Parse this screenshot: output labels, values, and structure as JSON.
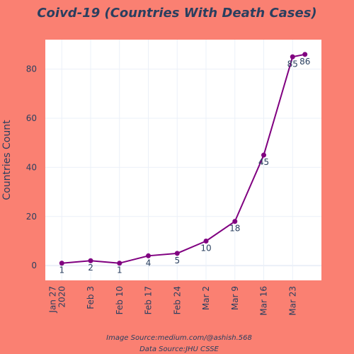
{
  "chart_data": {
    "type": "line",
    "title": "Coivd-19 (Countries With Death Cases)",
    "xlabel": "",
    "ylabel": "Countries Count",
    "x_ticks": [
      "Jan 27\n2020",
      "Feb 3",
      "Feb 10",
      "Feb 17",
      "Feb 24",
      "Mar 2",
      "Mar 9",
      "Mar 16",
      "Mar 23"
    ],
    "y_ticks": [
      0,
      20,
      40,
      60,
      80
    ],
    "ylim": [
      -6,
      92
    ],
    "xlim": [
      "2020-01-23",
      "2020-03-30"
    ],
    "grid": true,
    "legend": false,
    "series": [
      {
        "x": [
          "2020-01-27",
          "2020-02-03",
          "2020-02-10",
          "2020-02-17",
          "2020-02-24",
          "2020-03-02",
          "2020-03-09",
          "2020-03-16",
          "2020-03-23",
          "2020-03-26"
        ],
        "y": [
          1,
          2,
          1,
          4,
          5,
          10,
          18,
          45,
          85,
          86
        ],
        "labels": [
          "1",
          "2",
          "1",
          "4",
          "5",
          "10",
          "18",
          "45",
          "85",
          "86"
        ],
        "color": "#800080"
      }
    ],
    "plot_background": "#ffffff",
    "paper_background": "#fa8072",
    "annotations": [
      "Image Source:medium.com/@ashish.568",
      "Data Source:JHU CSSE"
    ]
  }
}
